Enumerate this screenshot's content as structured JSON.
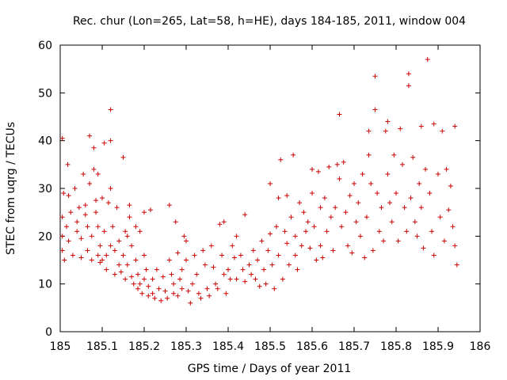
{
  "chart_data": {
    "type": "scatter",
    "title": "Rec. chur (Lon=265, Lat=58, h=HE), days 184-185, 2011, window 004",
    "xlabel": "GPS time / Days of year 2011",
    "ylabel": "STEC from uqrg / TECUs",
    "xlim": [
      185,
      186
    ],
    "ylim": [
      0,
      60
    ],
    "xticks": [
      "185",
      "185.1",
      "185.2",
      "185.3",
      "185.4",
      "185.5",
      "185.6",
      "185.7",
      "185.8",
      "185.9",
      "186"
    ],
    "yticks": [
      "0",
      "10",
      "20",
      "30",
      "40",
      "50",
      "60"
    ],
    "grid": false,
    "legend": "none",
    "marker": "plus",
    "color": "#cc0000",
    "series": [
      {
        "values": [
          [
            185.005,
            40.5
          ],
          [
            185.005,
            24
          ],
          [
            185.005,
            20
          ],
          [
            185.005,
            17
          ],
          [
            185.008,
            29
          ],
          [
            185.01,
            15
          ],
          [
            185.015,
            22
          ],
          [
            185.018,
            35
          ],
          [
            185.02,
            28.5
          ],
          [
            185.02,
            19
          ],
          [
            185.025,
            25
          ],
          [
            185.03,
            16
          ],
          [
            185.035,
            30
          ],
          [
            185.04,
            23
          ],
          [
            185.04,
            21
          ],
          [
            185.045,
            26
          ],
          [
            185.05,
            15.5
          ],
          [
            185.05,
            19.5
          ],
          [
            185.055,
            33
          ],
          [
            185.06,
            26.5
          ],
          [
            185.06,
            24.5
          ],
          [
            185.065,
            22
          ],
          [
            185.065,
            17
          ],
          [
            185.07,
            41
          ],
          [
            185.07,
            31
          ],
          [
            185.075,
            20
          ],
          [
            185.075,
            15
          ],
          [
            185.08,
            34
          ],
          [
            185.08,
            38.5
          ],
          [
            185.085,
            27.5
          ],
          [
            185.085,
            25
          ],
          [
            185.09,
            33
          ],
          [
            185.09,
            22
          ],
          [
            185.09,
            16
          ],
          [
            185.095,
            18
          ],
          [
            185.095,
            14.5
          ],
          [
            185.1,
            28
          ],
          [
            185.1,
            15
          ],
          [
            185.105,
            39.5
          ],
          [
            185.105,
            21
          ],
          [
            185.11,
            16
          ],
          [
            185.11,
            13
          ],
          [
            185.115,
            27
          ],
          [
            185.12,
            46.5
          ],
          [
            185.12,
            40
          ],
          [
            185.12,
            30
          ],
          [
            185.12,
            18
          ],
          [
            185.125,
            22
          ],
          [
            185.13,
            17
          ],
          [
            185.13,
            12
          ],
          [
            185.135,
            26
          ],
          [
            185.14,
            14
          ],
          [
            185.14,
            19
          ],
          [
            185.145,
            12.5
          ],
          [
            185.15,
            36.5
          ],
          [
            185.15,
            16
          ],
          [
            185.155,
            21
          ],
          [
            185.155,
            11
          ],
          [
            185.16,
            20
          ],
          [
            185.16,
            14
          ],
          [
            185.165,
            26.5
          ],
          [
            185.165,
            24
          ],
          [
            185.17,
            18
          ],
          [
            185.17,
            11.5
          ],
          [
            185.175,
            10
          ],
          [
            185.18,
            22
          ],
          [
            185.18,
            15
          ],
          [
            185.185,
            9
          ],
          [
            185.185,
            12
          ],
          [
            185.19,
            21
          ],
          [
            185.19,
            10
          ],
          [
            185.195,
            8
          ],
          [
            185.2,
            25
          ],
          [
            185.2,
            16
          ],
          [
            185.2,
            11
          ],
          [
            185.205,
            13
          ],
          [
            185.21,
            9.5
          ],
          [
            185.21,
            7.5
          ],
          [
            185.215,
            25.5
          ],
          [
            185.22,
            11
          ],
          [
            185.22,
            8
          ],
          [
            185.225,
            7
          ],
          [
            185.23,
            13
          ],
          [
            185.235,
            9
          ],
          [
            185.24,
            6.5
          ],
          [
            185.245,
            11.5
          ],
          [
            185.25,
            8.5
          ],
          [
            185.255,
            7
          ],
          [
            185.26,
            26.5
          ],
          [
            185.26,
            15
          ],
          [
            185.265,
            12
          ],
          [
            185.27,
            10
          ],
          [
            185.27,
            8
          ],
          [
            185.275,
            23
          ],
          [
            185.28,
            16.5
          ],
          [
            185.28,
            7.5
          ],
          [
            185.285,
            11
          ],
          [
            185.29,
            13
          ],
          [
            185.29,
            9
          ],
          [
            185.295,
            20
          ],
          [
            185.3,
            19
          ],
          [
            185.3,
            15
          ],
          [
            185.305,
            8.5
          ],
          [
            185.31,
            6
          ],
          [
            185.315,
            10
          ],
          [
            185.32,
            16
          ],
          [
            185.325,
            12
          ],
          [
            185.33,
            8
          ],
          [
            185.335,
            7
          ],
          [
            185.34,
            17
          ],
          [
            185.345,
            14
          ],
          [
            185.35,
            9
          ],
          [
            185.355,
            7.5
          ],
          [
            185.36,
            18
          ],
          [
            185.365,
            13.5
          ],
          [
            185.37,
            10
          ],
          [
            185.375,
            9
          ],
          [
            185.38,
            22.5
          ],
          [
            185.385,
            16
          ],
          [
            185.39,
            23
          ],
          [
            185.39,
            12
          ],
          [
            185.395,
            8
          ],
          [
            185.4,
            13
          ],
          [
            185.405,
            11
          ],
          [
            185.41,
            18
          ],
          [
            185.415,
            15.5
          ],
          [
            185.42,
            20
          ],
          [
            185.42,
            11
          ],
          [
            185.43,
            16
          ],
          [
            185.435,
            13
          ],
          [
            185.44,
            24.5
          ],
          [
            185.44,
            10.5
          ],
          [
            185.45,
            14
          ],
          [
            185.455,
            12
          ],
          [
            185.46,
            17
          ],
          [
            185.465,
            11
          ],
          [
            185.47,
            15
          ],
          [
            185.475,
            9.5
          ],
          [
            185.48,
            19
          ],
          [
            185.485,
            13
          ],
          [
            185.49,
            10
          ],
          [
            185.495,
            17
          ],
          [
            185.5,
            31
          ],
          [
            185.5,
            20.5
          ],
          [
            185.505,
            14
          ],
          [
            185.51,
            9
          ],
          [
            185.515,
            22
          ],
          [
            185.52,
            16
          ],
          [
            185.52,
            28
          ],
          [
            185.525,
            36
          ],
          [
            185.53,
            11
          ],
          [
            185.535,
            21
          ],
          [
            185.54,
            28.5
          ],
          [
            185.54,
            18.5
          ],
          [
            185.545,
            14
          ],
          [
            185.55,
            24
          ],
          [
            185.555,
            37
          ],
          [
            185.56,
            20
          ],
          [
            185.56,
            16
          ],
          [
            185.565,
            13
          ],
          [
            185.57,
            27
          ],
          [
            185.575,
            18
          ],
          [
            185.58,
            25
          ],
          [
            185.585,
            21
          ],
          [
            185.59,
            23
          ],
          [
            185.595,
            17.5
          ],
          [
            185.6,
            34
          ],
          [
            185.6,
            29
          ],
          [
            185.605,
            22
          ],
          [
            185.61,
            15
          ],
          [
            185.615,
            33.5
          ],
          [
            185.62,
            26
          ],
          [
            185.62,
            18
          ],
          [
            185.625,
            15.5
          ],
          [
            185.63,
            28
          ],
          [
            185.635,
            21
          ],
          [
            185.64,
            34.5
          ],
          [
            185.645,
            24
          ],
          [
            185.65,
            17
          ],
          [
            185.655,
            26
          ],
          [
            185.66,
            35
          ],
          [
            185.665,
            45.5
          ],
          [
            185.665,
            32
          ],
          [
            185.67,
            22
          ],
          [
            185.675,
            35.5
          ],
          [
            185.68,
            25
          ],
          [
            185.685,
            18
          ],
          [
            185.69,
            28.5
          ],
          [
            185.695,
            16.5
          ],
          [
            185.7,
            31
          ],
          [
            185.705,
            23
          ],
          [
            185.71,
            27
          ],
          [
            185.715,
            20
          ],
          [
            185.72,
            33
          ],
          [
            185.725,
            15.5
          ],
          [
            185.73,
            24
          ],
          [
            185.735,
            42
          ],
          [
            185.735,
            37
          ],
          [
            185.74,
            31
          ],
          [
            185.745,
            17
          ],
          [
            185.75,
            53.5
          ],
          [
            185.75,
            46.5
          ],
          [
            185.755,
            29
          ],
          [
            185.76,
            21
          ],
          [
            185.765,
            26
          ],
          [
            185.77,
            19
          ],
          [
            185.775,
            42
          ],
          [
            185.78,
            44
          ],
          [
            185.78,
            33
          ],
          [
            185.785,
            27
          ],
          [
            185.79,
            23
          ],
          [
            185.795,
            37
          ],
          [
            185.8,
            29
          ],
          [
            185.805,
            19
          ],
          [
            185.81,
            42.5
          ],
          [
            185.815,
            35
          ],
          [
            185.82,
            26
          ],
          [
            185.825,
            21
          ],
          [
            185.83,
            54
          ],
          [
            185.83,
            51.5
          ],
          [
            185.835,
            28
          ],
          [
            185.84,
            36.5
          ],
          [
            185.845,
            23
          ],
          [
            185.85,
            20
          ],
          [
            185.855,
            31
          ],
          [
            185.86,
            43
          ],
          [
            185.86,
            26
          ],
          [
            185.865,
            17.5
          ],
          [
            185.87,
            34
          ],
          [
            185.875,
            57
          ],
          [
            185.88,
            29
          ],
          [
            185.885,
            21
          ],
          [
            185.89,
            43.5
          ],
          [
            185.89,
            16
          ],
          [
            185.9,
            33
          ],
          [
            185.905,
            24
          ],
          [
            185.91,
            42
          ],
          [
            185.915,
            19
          ],
          [
            185.92,
            34
          ],
          [
            185.925,
            25.5
          ],
          [
            185.93,
            30.5
          ],
          [
            185.935,
            22
          ],
          [
            185.94,
            43
          ],
          [
            185.94,
            18
          ],
          [
            185.945,
            14
          ]
        ]
      }
    ]
  }
}
